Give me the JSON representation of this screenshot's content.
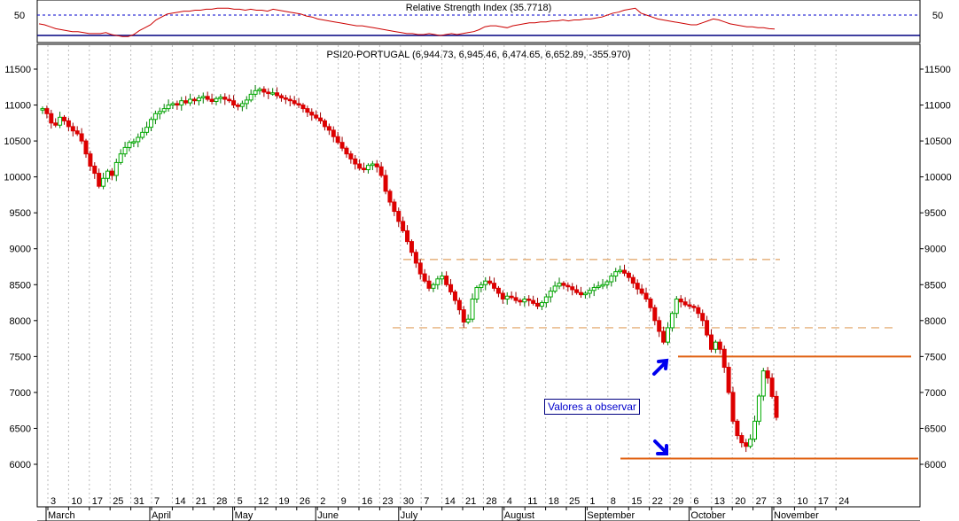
{
  "rsi_panel": {
    "title": "Relative Strength Index (35.7718)",
    "left_axis_label": "50",
    "right_axis_label": "50"
  },
  "price_panel": {
    "title": "PSI20-PORTUGAL (6,944.73, 6,945.46, 6,474.65, 6,652.89, -355.970)"
  },
  "annotation": {
    "text": "Valores a observar"
  },
  "colors": {
    "up_candle": "#00aa00",
    "down_candle": "#dd0000",
    "support_line": "#e06010",
    "dashed_line": "#e0a060",
    "rsi_line": "#cc0000",
    "rsi_level": "#0000cc",
    "arrow": "#0000ee"
  },
  "chart_data": [
    {
      "type": "line",
      "title": "Relative Strength Index (35.7718)",
      "yticks": [
        50
      ],
      "reference_level": 50,
      "series": [
        {
          "name": "Relative Strength Index",
          "y": [
            41,
            40,
            38,
            36,
            35,
            34,
            33,
            33,
            32,
            31,
            31,
            31,
            32,
            30,
            29,
            28,
            28,
            30,
            34,
            37,
            40,
            45,
            48,
            51,
            52,
            53,
            54,
            54,
            55,
            55,
            56,
            56,
            57,
            57,
            57,
            56,
            56,
            55,
            56,
            55,
            55,
            54,
            56,
            55,
            54,
            53,
            52,
            51,
            49,
            48,
            46,
            45,
            44,
            43,
            42,
            41,
            40,
            39,
            39,
            38,
            37,
            36,
            35,
            34,
            33,
            32,
            31,
            31,
            30,
            30,
            31,
            30,
            29,
            30,
            31,
            30,
            31,
            32,
            33,
            35,
            38,
            39,
            39,
            38,
            37,
            39,
            40,
            41,
            42,
            42,
            43,
            43,
            44,
            44,
            45,
            44,
            45,
            45,
            46,
            46,
            47,
            48,
            50,
            52,
            53,
            55,
            56,
            57,
            52,
            50,
            48,
            46,
            45,
            44,
            43,
            42,
            41,
            40,
            40,
            42,
            44,
            46,
            45,
            43,
            41,
            40,
            39,
            38,
            38,
            37,
            37,
            36,
            35.7718
          ]
        }
      ]
    },
    {
      "type": "candlestick",
      "title": "PSI20-PORTUGAL (6,944.73, 6,945.46, 6,474.65, 6,652.89, -355.970)",
      "ylim": [
        5600,
        11800
      ],
      "yticks": [
        6000,
        6500,
        7000,
        7500,
        8000,
        8500,
        9000,
        9500,
        10000,
        10500,
        11000,
        11500
      ],
      "x_tick_labels": [
        "3",
        "10",
        "17",
        "25",
        "31",
        "7",
        "14",
        "21",
        "28",
        "5",
        "12",
        "19",
        "26",
        "2",
        "9",
        "16",
        "23",
        "30",
        "7",
        "14",
        "21",
        "28",
        "4",
        "11",
        "18",
        "25",
        "1",
        "8",
        "15",
        "22",
        "29",
        "6",
        "13",
        "20",
        "27",
        "3",
        "10",
        "17",
        "24"
      ],
      "month_labels": [
        "March",
        "April",
        "May",
        "June",
        "July",
        "August",
        "September",
        "October",
        "November"
      ],
      "grid": "vertical dotted",
      "series": [
        {
          "name": "PSI20-PORTUGAL",
          "close": [
            10950,
            10880,
            10750,
            10720,
            10830,
            10780,
            10700,
            10640,
            10600,
            10500,
            10320,
            10150,
            10050,
            9870,
            9980,
            10080,
            10020,
            10200,
            10320,
            10410,
            10480,
            10490,
            10550,
            10620,
            10690,
            10800,
            10880,
            10910,
            10950,
            11000,
            11020,
            11000,
            11060,
            11030,
            11080,
            11060,
            11100,
            11120,
            11080,
            11050,
            11090,
            11110,
            11080,
            11060,
            11000,
            10980,
            11020,
            11070,
            11150,
            11200,
            11220,
            11180,
            11160,
            11170,
            11130,
            11100,
            11080,
            11060,
            11020,
            11000,
            10950,
            10900,
            10860,
            10820,
            10780,
            10700,
            10650,
            10560,
            10480,
            10400,
            10320,
            10250,
            10180,
            10120,
            10100,
            10160,
            10180,
            10140,
            10020,
            9800,
            9650,
            9520,
            9380,
            9250,
            9100,
            8950,
            8800,
            8650,
            8550,
            8450,
            8500,
            8580,
            8620,
            8500,
            8400,
            8280,
            8150,
            7980,
            8020,
            8300,
            8460,
            8500,
            8550,
            8520,
            8450,
            8380,
            8300,
            8340,
            8320,
            8280,
            8260,
            8300,
            8280,
            8240,
            8200,
            8250,
            8330,
            8410,
            8480,
            8520,
            8490,
            8470,
            8430,
            8390,
            8360,
            8380,
            8420,
            8460,
            8480,
            8500,
            8540,
            8620,
            8680,
            8700,
            8660,
            8600,
            8520,
            8440,
            8380,
            8300,
            8180,
            8000,
            7850,
            7700,
            7900,
            8100,
            8300,
            8260,
            8220,
            8200,
            8180,
            8100,
            8000,
            7800,
            7600,
            7700,
            7600,
            7350,
            7000,
            6600,
            6400,
            6300,
            6250,
            6350,
            6600,
            6950,
            7300,
            7200,
            6944.73,
            6652.89
          ]
        }
      ],
      "annotations": [
        {
          "type": "horizontal_line",
          "y": 8850,
          "style": "dashed"
        },
        {
          "type": "horizontal_line",
          "y": 7900,
          "style": "dashed"
        },
        {
          "type": "horizontal_line",
          "y": 7500,
          "style": "solid"
        },
        {
          "type": "horizontal_line",
          "y": 6080,
          "style": "solid"
        }
      ]
    }
  ]
}
